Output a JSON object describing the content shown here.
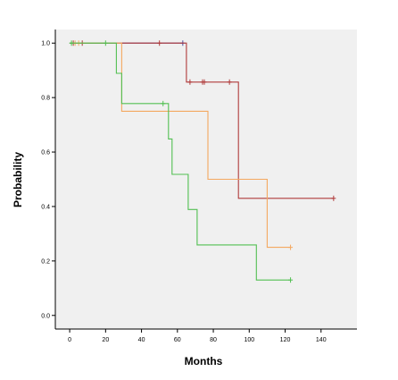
{
  "chart_data": {
    "type": "line",
    "subtype": "kaplan-meier step plot",
    "xlabel": "Months",
    "ylabel": "Probability",
    "xlim": [
      -8,
      160
    ],
    "ylim": [
      -0.05,
      1.05
    ],
    "xticks": [
      0,
      20,
      40,
      60,
      80,
      100,
      120,
      140
    ],
    "yticks": [
      0.0,
      0.2,
      0.4,
      0.6,
      0.8,
      1.0
    ],
    "xtick_labels": [
      "0",
      "20",
      "40",
      "60",
      "80",
      "100",
      "120",
      "140"
    ],
    "ytick_labels": [
      "0.0",
      "0.2",
      "0.4",
      "0.6",
      "0.8",
      "1.0"
    ],
    "plot_background": "#f0f0f0",
    "grid": false,
    "legend": "none",
    "series": [
      {
        "color": "#4c4ca0",
        "steps": [
          [
            0,
            1.0
          ],
          [
            63,
            1.0
          ]
        ],
        "censored": [
          [
            63,
            1.0
          ]
        ]
      },
      {
        "color": "#b03a3a",
        "steps": [
          [
            0,
            1.0
          ],
          [
            65,
            1.0
          ],
          [
            65,
            0.857
          ],
          [
            94,
            0.857
          ],
          [
            94,
            0.43
          ],
          [
            147,
            0.43
          ]
        ],
        "censored": [
          [
            2,
            1.0
          ],
          [
            7,
            1.0
          ],
          [
            50,
            1.0
          ],
          [
            67,
            0.857
          ],
          [
            74,
            0.857
          ],
          [
            75,
            0.857
          ],
          [
            89,
            0.857
          ],
          [
            147,
            0.43
          ]
        ]
      },
      {
        "color": "#f4a860",
        "steps": [
          [
            0,
            1.0
          ],
          [
            29,
            1.0
          ],
          [
            29,
            0.75
          ],
          [
            77,
            0.75
          ],
          [
            77,
            0.5
          ],
          [
            110,
            0.5
          ],
          [
            110,
            0.25
          ],
          [
            123,
            0.25
          ]
        ],
        "censored": [
          [
            3,
            1.0
          ],
          [
            5,
            1.0
          ],
          [
            123,
            0.25
          ]
        ]
      },
      {
        "color": "#52bf52",
        "steps": [
          [
            0,
            1.0
          ],
          [
            26,
            1.0
          ],
          [
            26,
            0.889
          ],
          [
            29,
            0.889
          ],
          [
            29,
            0.778
          ],
          [
            55,
            0.778
          ],
          [
            55,
            0.648
          ],
          [
            57,
            0.648
          ],
          [
            57,
            0.518
          ],
          [
            66,
            0.518
          ],
          [
            66,
            0.389
          ],
          [
            71,
            0.389
          ],
          [
            71,
            0.259
          ],
          [
            104,
            0.259
          ],
          [
            104,
            0.13
          ],
          [
            123,
            0.13
          ]
        ],
        "censored": [
          [
            1,
            1.0
          ],
          [
            20,
            1.0
          ],
          [
            52,
            0.778
          ],
          [
            123,
            0.13
          ]
        ]
      }
    ]
  }
}
